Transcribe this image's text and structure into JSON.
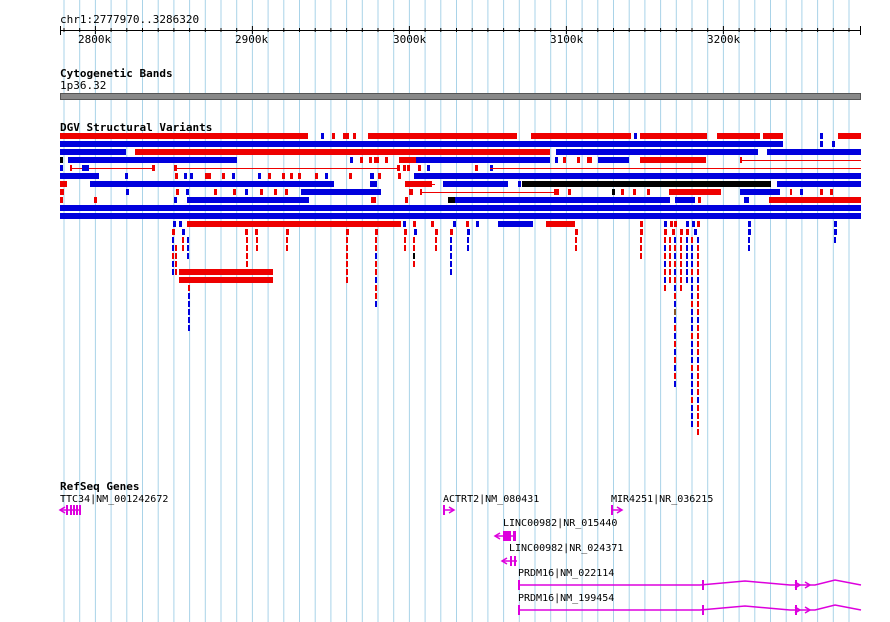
{
  "locus": "chr1:2777970..3286320",
  "ruler": {
    "ticks": [
      "2800k",
      "2900k",
      "3000k",
      "3100k",
      "3200k"
    ]
  },
  "tracks": {
    "cytoband": {
      "title": "Cytogenetic Bands",
      "band_label": "1p36.32"
    },
    "dgv": {
      "title": "DGV Structural Variants"
    },
    "refseq": {
      "title": "RefSeq Genes"
    }
  },
  "genes": [
    {
      "label": "TTC34|NM_001242672"
    },
    {
      "label": "ACTRT2|NM_080431"
    },
    {
      "label": "MIR4251|NR_036215"
    },
    {
      "label": "LINC00982|NR_015440"
    },
    {
      "label": "LINC00982|NR_024371"
    },
    {
      "label": "PRDM16|NM_022114"
    },
    {
      "label": "PRDM16|NM_199454"
    }
  ],
  "colors": {
    "gain": "#ee0000",
    "loss": "#0000dd",
    "complex": "#000000",
    "gene": "#dd00dd",
    "grid": "#a9d3e8"
  }
}
